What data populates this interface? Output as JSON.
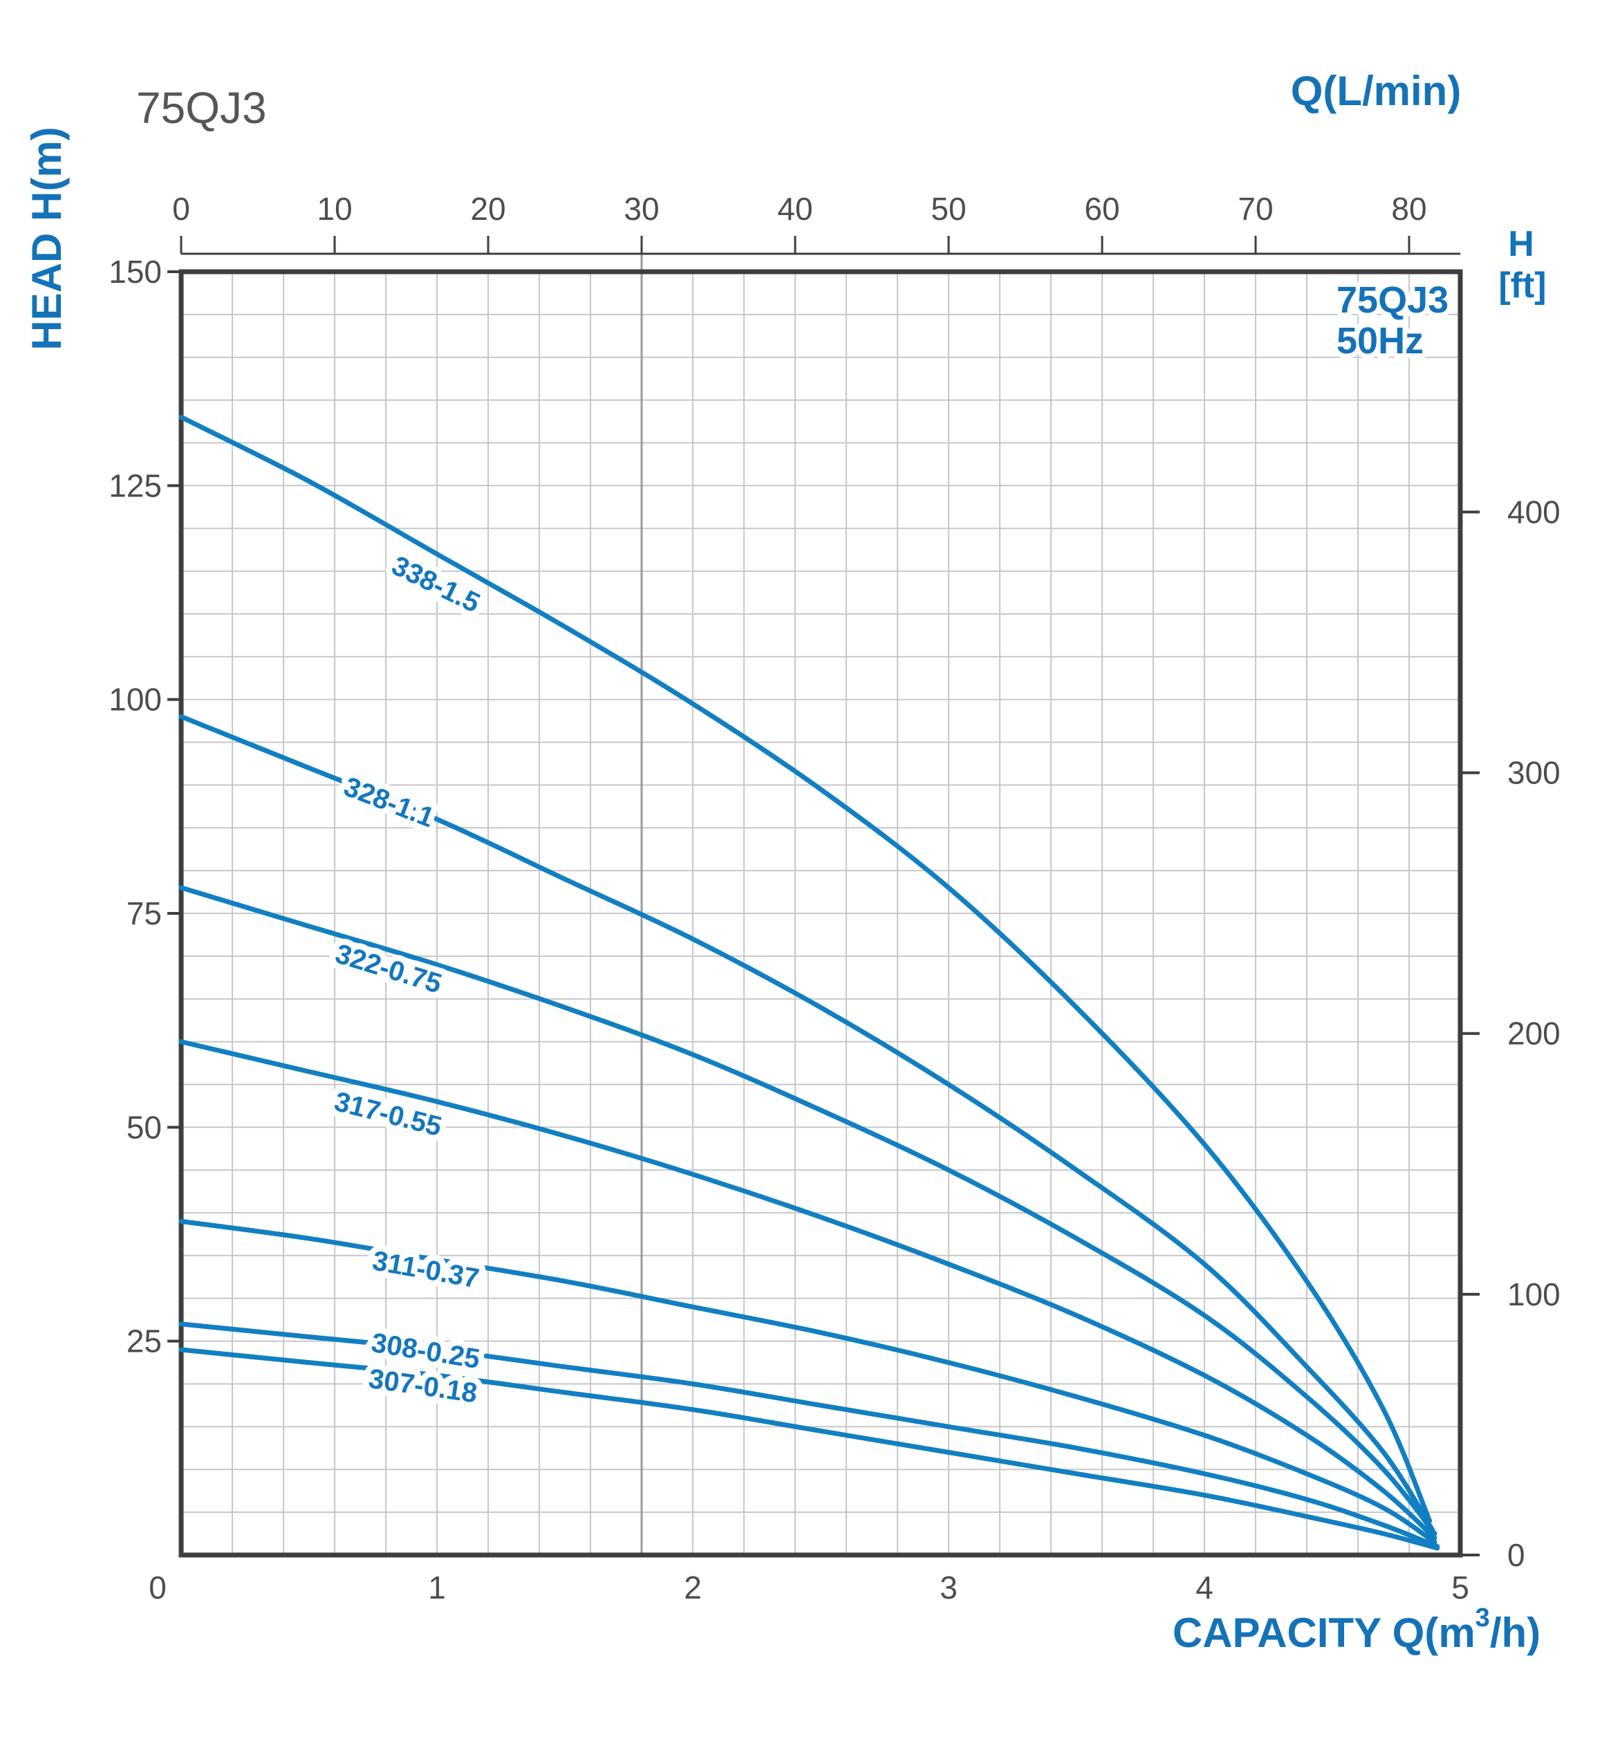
{
  "title": "75QJ3",
  "top_axis": {
    "label": "Q(L/min)",
    "ticks": [
      0,
      10,
      20,
      30,
      40,
      50,
      60,
      70,
      80
    ]
  },
  "left_axis": {
    "label": "HEAD H(m)",
    "ticks": [
      150,
      125,
      100,
      75,
      50,
      25
    ]
  },
  "right_axis": {
    "label_line1": "H",
    "label_line2": "[ft]",
    "ticks": [
      400,
      300,
      200,
      100,
      0
    ]
  },
  "bottom_axis": {
    "label_prefix": "CAPACITY Q(m",
    "label_sup": "3",
    "label_suffix": "/h)",
    "ticks": [
      0,
      1,
      2,
      3,
      4,
      5
    ]
  },
  "legend": {
    "line1": "75QJ3",
    "line2": "50Hz"
  },
  "colors": {
    "accent_blue": "#1472B8",
    "curve_blue": "#117FC2",
    "text_gray": "#4D4D4D",
    "border_gray": "#3E3E3E",
    "grid_gray": "#C7C7C7",
    "ref_line_gray": "#9B9B9B"
  },
  "chart_data": {
    "type": "line",
    "title": "75QJ3 50Hz submersible pump head-capacity curves",
    "xlabel": "CAPACITY Q(m3/h)",
    "x2label": "Q(L/min)",
    "ylabel": "HEAD H(m)",
    "y2label": "H [ft]",
    "xlim": [
      0,
      5
    ],
    "ylim": [
      0,
      150
    ],
    "x2lim_lmin": [
      0,
      83.3
    ],
    "y2lim_ft": [
      0,
      492
    ],
    "grid": {
      "on": true,
      "x_step_m3h": 0.2,
      "y_step_m": 5
    },
    "reference_line_at_lmin": 30,
    "legend_position": "top-right-inside",
    "series": [
      {
        "name": "338-1.5",
        "label_q": 0.98,
        "label_h": 112.5,
        "label_angle": 26,
        "points": [
          [
            0,
            133
          ],
          [
            0.5,
            125.5
          ],
          [
            1,
            117
          ],
          [
            1.5,
            108.5
          ],
          [
            2,
            99.5
          ],
          [
            2.5,
            89.5
          ],
          [
            3,
            78
          ],
          [
            3.5,
            64
          ],
          [
            4,
            48
          ],
          [
            4.4,
            32
          ],
          [
            4.7,
            17
          ],
          [
            4.88,
            4
          ]
        ]
      },
      {
        "name": "328-1.1",
        "label_q": 0.8,
        "label_h": 87,
        "label_angle": 21,
        "points": [
          [
            0,
            98
          ],
          [
            0.5,
            92
          ],
          [
            1,
            86
          ],
          [
            1.5,
            79
          ],
          [
            2,
            72
          ],
          [
            2.5,
            64
          ],
          [
            3,
            55
          ],
          [
            3.5,
            45
          ],
          [
            4,
            34
          ],
          [
            4.4,
            22
          ],
          [
            4.7,
            12
          ],
          [
            4.89,
            3
          ]
        ]
      },
      {
        "name": "322-0.75",
        "label_q": 0.8,
        "label_h": 67.5,
        "label_angle": 17,
        "points": [
          [
            0,
            78
          ],
          [
            0.5,
            73.5
          ],
          [
            1,
            69
          ],
          [
            1.5,
            64
          ],
          [
            2,
            58.5
          ],
          [
            2.5,
            52
          ],
          [
            3,
            45
          ],
          [
            3.5,
            37
          ],
          [
            4,
            28
          ],
          [
            4.4,
            18.5
          ],
          [
            4.7,
            10
          ],
          [
            4.9,
            2.5
          ]
        ]
      },
      {
        "name": "317-0.55",
        "label_q": 0.8,
        "label_h": 50.5,
        "label_angle": 14,
        "points": [
          [
            0,
            60
          ],
          [
            0.5,
            56.5
          ],
          [
            1,
            53
          ],
          [
            1.5,
            49
          ],
          [
            2,
            44.5
          ],
          [
            2.5,
            39.5
          ],
          [
            3,
            34
          ],
          [
            3.5,
            28
          ],
          [
            4,
            21
          ],
          [
            4.4,
            14
          ],
          [
            4.7,
            7.5
          ],
          [
            4.9,
            2
          ]
        ]
      },
      {
        "name": "311-0.37",
        "label_q": 0.95,
        "label_h": 32.3,
        "label_angle": 10,
        "points": [
          [
            0,
            39
          ],
          [
            0.5,
            37
          ],
          [
            1,
            34.5
          ],
          [
            1.5,
            32
          ],
          [
            2,
            29
          ],
          [
            2.5,
            26
          ],
          [
            3,
            22.5
          ],
          [
            3.5,
            18.5
          ],
          [
            4,
            14
          ],
          [
            4.4,
            9.5
          ],
          [
            4.7,
            5.5
          ],
          [
            4.9,
            1.5
          ]
        ]
      },
      {
        "name": "308-0.25",
        "label_q": 0.95,
        "label_h": 22.8,
        "label_angle": 9,
        "points": [
          [
            0,
            27
          ],
          [
            0.5,
            25.5
          ],
          [
            1,
            24
          ],
          [
            1.5,
            22
          ],
          [
            2,
            20
          ],
          [
            2.5,
            17.5
          ],
          [
            3,
            15
          ],
          [
            3.5,
            12.5
          ],
          [
            4,
            9.5
          ],
          [
            4.4,
            6.5
          ],
          [
            4.7,
            3.5
          ],
          [
            4.91,
            1
          ]
        ]
      },
      {
        "name": "307-0.18",
        "label_q": 0.94,
        "label_h": 18.7,
        "label_angle": 8,
        "points": [
          [
            0,
            24
          ],
          [
            0.5,
            22.5
          ],
          [
            1,
            21
          ],
          [
            1.5,
            19
          ],
          [
            2,
            17
          ],
          [
            2.5,
            14.5
          ],
          [
            3,
            12
          ],
          [
            3.5,
            9.5
          ],
          [
            4,
            7
          ],
          [
            4.4,
            4.5
          ],
          [
            4.7,
            2.5
          ],
          [
            4.91,
            0.8
          ]
        ]
      }
    ]
  }
}
